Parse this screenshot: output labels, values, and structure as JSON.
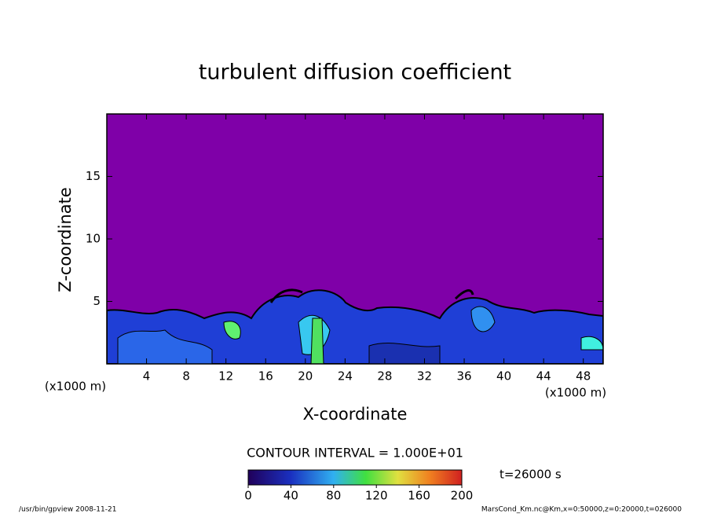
{
  "chart_data": {
    "type": "contour",
    "title": "turbulent diffusion coefficient",
    "x_label": "X-coordinate",
    "y_label": "Z-coordinate",
    "x_unit": "(x1000 m)",
    "xlim": [
      0,
      50
    ],
    "xticks": [
      4,
      8,
      12,
      16,
      20,
      24,
      28,
      32,
      36,
      40,
      44,
      48
    ],
    "ylim": [
      0,
      20
    ],
    "yticks": [
      5,
      10,
      15
    ],
    "contour_interval": "CONTOUR INTERVAL = 1.000E+01",
    "time_label": "t=26000 s",
    "colorbar": {
      "lim": [
        0,
        200
      ],
      "ticks": [
        0,
        40,
        80,
        120,
        160,
        200
      ]
    },
    "footer_left": "/usr/bin/gpview   2008-11-21",
    "footer_right": "MarsCond_Km.nc@Km,x=0:50000,z=0:20000,t=026000"
  }
}
